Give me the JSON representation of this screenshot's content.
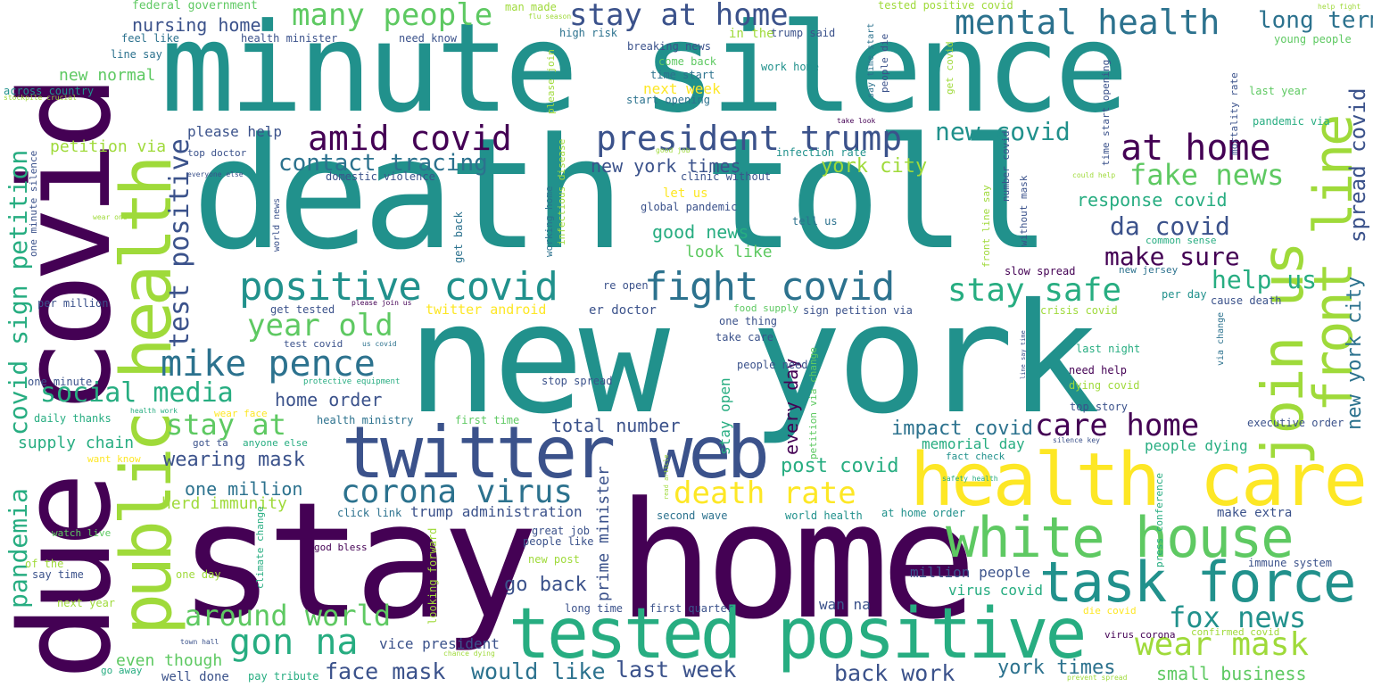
{
  "palette": {
    "dark_purple": "#440154",
    "indigo": "#3b528b",
    "blue": "#2c728e",
    "teal": "#21918c",
    "green": "#27ad81",
    "lime": "#5ec962",
    "light_lime": "#9fda3a",
    "yellow": "#fde725"
  },
  "words": [
    {
      "text": "new york"
    },
    {
      "text": "death toll"
    },
    {
      "text": "minute silence"
    },
    {
      "text": "stay home"
    },
    {
      "text": "due covid"
    },
    {
      "text": "health care"
    },
    {
      "text": "tested positive"
    },
    {
      "text": "public health"
    },
    {
      "text": "twitter web"
    },
    {
      "text": "white house"
    },
    {
      "text": "task force"
    },
    {
      "text": "join us"
    },
    {
      "text": "front line"
    },
    {
      "text": "positive covid"
    },
    {
      "text": "fight covid"
    },
    {
      "text": "president trump"
    },
    {
      "text": "amid covid"
    },
    {
      "text": "at home"
    },
    {
      "text": "mental health"
    },
    {
      "text": "stay at home"
    },
    {
      "text": "mike pence"
    },
    {
      "text": "stay safe"
    },
    {
      "text": "social media"
    },
    {
      "text": "corona virus"
    },
    {
      "text": "gon na"
    },
    {
      "text": "around world"
    },
    {
      "text": "death rate"
    },
    {
      "text": "wear mask"
    },
    {
      "text": "year old"
    },
    {
      "text": "care home"
    },
    {
      "text": "stay at"
    },
    {
      "text": "many people"
    },
    {
      "text": "test positive"
    },
    {
      "text": "fake news"
    },
    {
      "text": "fox news"
    },
    {
      "text": "new covid"
    },
    {
      "text": "make sure"
    },
    {
      "text": "covid sign petition"
    },
    {
      "text": "pandemia"
    },
    {
      "text": "long term"
    },
    {
      "text": "contact tracing"
    },
    {
      "text": "da covid"
    },
    {
      "text": "help us"
    },
    {
      "text": "spread covid"
    },
    {
      "text": "new york city"
    },
    {
      "text": "face mask"
    },
    {
      "text": "would like"
    },
    {
      "text": "last week"
    },
    {
      "text": "back work"
    },
    {
      "text": "york times"
    },
    {
      "text": "impact covid"
    },
    {
      "text": "wearing mask"
    },
    {
      "text": "one million"
    },
    {
      "text": "go back"
    },
    {
      "text": "post covid"
    },
    {
      "text": "york city"
    },
    {
      "text": "new york times"
    },
    {
      "text": "good news"
    },
    {
      "text": "response covid"
    },
    {
      "text": "every day"
    },
    {
      "text": "total number"
    },
    {
      "text": "small business"
    },
    {
      "text": "home order"
    },
    {
      "text": "nursing home"
    },
    {
      "text": "even though"
    },
    {
      "text": "herd immunity"
    },
    {
      "text": "supply chain"
    },
    {
      "text": "petition via"
    },
    {
      "text": "new normal"
    },
    {
      "text": "please help"
    },
    {
      "text": "look like"
    },
    {
      "text": "next week"
    },
    {
      "text": "prime minister"
    },
    {
      "text": "trump administration"
    },
    {
      "text": "vice president"
    },
    {
      "text": "million people"
    },
    {
      "text": "virus covid"
    },
    {
      "text": "memorial day"
    },
    {
      "text": "people dying"
    },
    {
      "text": "stay open"
    },
    {
      "text": "wan na"
    },
    {
      "text": "federal government"
    },
    {
      "text": "health minister"
    },
    {
      "text": "need know"
    },
    {
      "text": "feel like"
    },
    {
      "text": "line say"
    },
    {
      "text": "across country"
    },
    {
      "text": "stockpile crucial"
    },
    {
      "text": "one minute silence"
    },
    {
      "text": "top doctor"
    },
    {
      "text": "everyone else"
    },
    {
      "text": "wear one"
    },
    {
      "text": "per million"
    },
    {
      "text": "one minute"
    },
    {
      "text": "daily thanks"
    },
    {
      "text": "health work"
    },
    {
      "text": "protective equipment"
    },
    {
      "text": "want know"
    },
    {
      "text": "watch live"
    },
    {
      "text": "of the"
    },
    {
      "text": "say time"
    },
    {
      "text": "next year"
    },
    {
      "text": "one day"
    },
    {
      "text": "go away"
    },
    {
      "text": "well done"
    },
    {
      "text": "pay tribute"
    },
    {
      "text": "town hall"
    },
    {
      "text": "chance dying"
    },
    {
      "text": "god bless"
    },
    {
      "text": "climate change"
    },
    {
      "text": "looking forward"
    },
    {
      "text": "wear face"
    },
    {
      "text": "got ta"
    },
    {
      "text": "anyone else"
    },
    {
      "text": "health ministry"
    },
    {
      "text": "first time"
    },
    {
      "text": "get tested"
    },
    {
      "text": "please join us"
    },
    {
      "text": "test covid"
    },
    {
      "text": "us covid"
    },
    {
      "text": "twitter android"
    },
    {
      "text": "er doctor"
    },
    {
      "text": "let us"
    },
    {
      "text": "clinic without"
    },
    {
      "text": "domestic violence"
    },
    {
      "text": "global pandemic"
    },
    {
      "text": "world news"
    },
    {
      "text": "get back"
    },
    {
      "text": "stop spread"
    },
    {
      "text": "click link"
    },
    {
      "text": "great job"
    },
    {
      "text": "people like"
    },
    {
      "text": "new post"
    },
    {
      "text": "long time"
    },
    {
      "text": "first quarter"
    },
    {
      "text": "second wave"
    },
    {
      "text": "world health"
    },
    {
      "text": "at home order"
    },
    {
      "text": "make extra"
    },
    {
      "text": "immune system"
    },
    {
      "text": "press conference"
    },
    {
      "text": "confirmed covid"
    },
    {
      "text": "virus corona"
    },
    {
      "text": "die covid"
    },
    {
      "text": "prevent spread"
    },
    {
      "text": "safety health"
    },
    {
      "text": "fact check"
    },
    {
      "text": "silence key"
    },
    {
      "text": "executive order"
    },
    {
      "text": "top story"
    },
    {
      "text": "dying covid"
    },
    {
      "text": "need help"
    },
    {
      "text": "last night"
    },
    {
      "text": "via change"
    },
    {
      "text": "line say time"
    },
    {
      "text": "cause death"
    },
    {
      "text": "per day"
    },
    {
      "text": "new jersey"
    },
    {
      "text": "common sense"
    },
    {
      "text": "slow spread"
    },
    {
      "text": "crisis covid"
    },
    {
      "text": "sign petition via"
    },
    {
      "text": "food supply"
    },
    {
      "text": "one thing"
    },
    {
      "text": "take care"
    },
    {
      "text": "people need"
    },
    {
      "text": "petition via change"
    },
    {
      "text": "re open"
    },
    {
      "text": "tell us"
    },
    {
      "text": "infection rate"
    },
    {
      "text": "good job"
    },
    {
      "text": "working home"
    },
    {
      "text": "infectious disease"
    },
    {
      "text": "please join"
    },
    {
      "text": "start opening"
    },
    {
      "text": "time start"
    },
    {
      "text": "come back"
    },
    {
      "text": "breaking news"
    },
    {
      "text": "high risk"
    },
    {
      "text": "work home"
    },
    {
      "text": "in the"
    },
    {
      "text": "trump said"
    },
    {
      "text": "man made"
    },
    {
      "text": "flu season"
    },
    {
      "text": "tested positive covid"
    },
    {
      "text": "say time start"
    },
    {
      "text": "people die"
    },
    {
      "text": "get covid"
    },
    {
      "text": "number covid"
    },
    {
      "text": "without mask"
    },
    {
      "text": "front line say"
    },
    {
      "text": "could help"
    },
    {
      "text": "time start opening"
    },
    {
      "text": "take look"
    },
    {
      "text": "mortality rate"
    },
    {
      "text": "help fight"
    },
    {
      "text": "young people"
    },
    {
      "text": "last year"
    },
    {
      "text": "pandemic via"
    },
    {
      "text": "read article"
    }
  ]
}
